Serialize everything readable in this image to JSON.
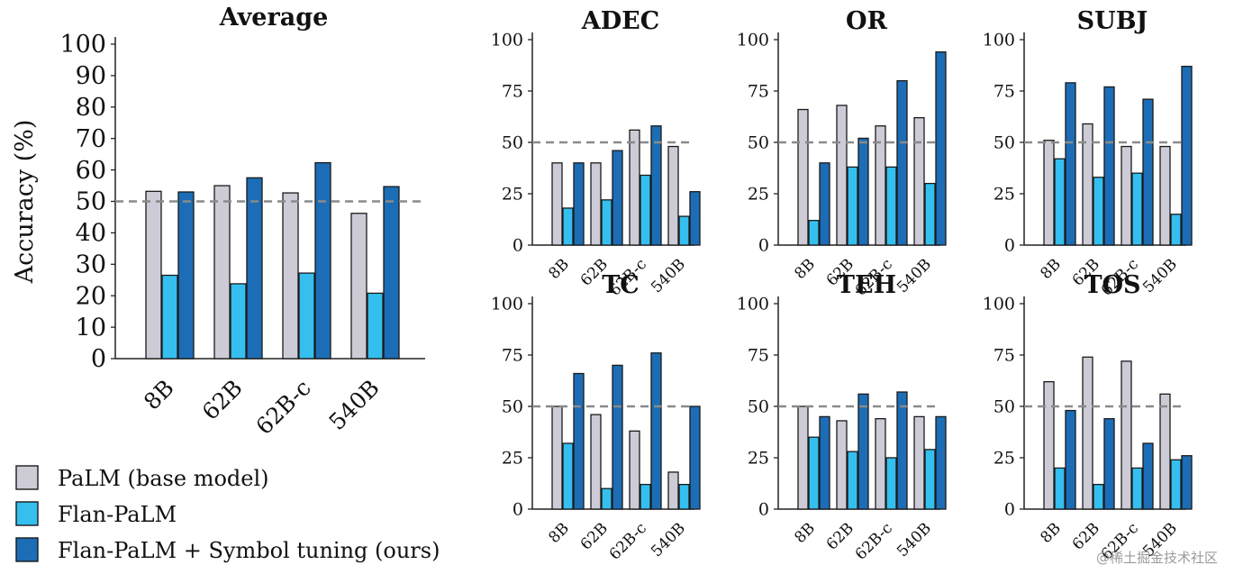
{
  "colors": {
    "palm": "#cdcbd6",
    "flan": "#35bfef",
    "symbol": "#1c6db5",
    "edge": "#1a1a1a",
    "reference": "#8a8a8a"
  },
  "legend": [
    {
      "key": "palm",
      "label": "PaLM (base model)"
    },
    {
      "key": "flan",
      "label": "Flan-PaLM"
    },
    {
      "key": "symbol",
      "label": "Flan-PaLM + Symbol tuning (ours)"
    }
  ],
  "watermark": "@稀土掘金技术社区",
  "chart_data": [
    {
      "type": "bar",
      "title": "Average",
      "ylabel": "Accuracy (%)",
      "ylim": [
        0,
        100
      ],
      "yticks": [
        0,
        10,
        20,
        30,
        40,
        50,
        60,
        70,
        80,
        90,
        100
      ],
      "reference_line": 50,
      "categories": [
        "8B",
        "62B",
        "62B-c",
        "540B"
      ],
      "series": [
        {
          "name": "PaLM (base model)",
          "values": [
            53.2,
            55.0,
            52.7,
            46.2
          ]
        },
        {
          "name": "Flan-PaLM",
          "values": [
            26.5,
            23.8,
            27.2,
            20.8
          ]
        },
        {
          "name": "Flan-PaLM + Symbol tuning (ours)",
          "values": [
            53.0,
            57.5,
            62.3,
            54.7
          ]
        }
      ]
    },
    {
      "type": "bar",
      "title": "ADEC",
      "ylim": [
        0,
        100
      ],
      "yticks": [
        0,
        25,
        50,
        75,
        100
      ],
      "reference_line": 50,
      "categories": [
        "8B",
        "62B",
        "62B-c",
        "540B"
      ],
      "series": [
        {
          "name": "PaLM (base model)",
          "values": [
            40,
            40,
            56,
            48
          ]
        },
        {
          "name": "Flan-PaLM",
          "values": [
            18,
            22,
            34,
            14
          ]
        },
        {
          "name": "Flan-PaLM + Symbol tuning (ours)",
          "values": [
            40,
            46,
            58,
            26
          ]
        }
      ]
    },
    {
      "type": "bar",
      "title": "OR",
      "ylim": [
        0,
        100
      ],
      "yticks": [
        0,
        25,
        50,
        75,
        100
      ],
      "reference_line": 50,
      "categories": [
        "8B",
        "62B",
        "62B-c",
        "540B"
      ],
      "series": [
        {
          "name": "PaLM (base model)",
          "values": [
            66,
            68,
            58,
            62
          ]
        },
        {
          "name": "Flan-PaLM",
          "values": [
            12,
            38,
            38,
            30
          ]
        },
        {
          "name": "Flan-PaLM + Symbol tuning (ours)",
          "values": [
            40,
            52,
            80,
            94
          ]
        }
      ]
    },
    {
      "type": "bar",
      "title": "SUBJ",
      "ylim": [
        0,
        100
      ],
      "yticks": [
        0,
        25,
        50,
        75,
        100
      ],
      "reference_line": 50,
      "categories": [
        "8B",
        "62B",
        "62B-c",
        "540B"
      ],
      "series": [
        {
          "name": "PaLM (base model)",
          "values": [
            51,
            59,
            48,
            48
          ]
        },
        {
          "name": "Flan-PaLM",
          "values": [
            42,
            33,
            35,
            15
          ]
        },
        {
          "name": "Flan-PaLM + Symbol tuning (ours)",
          "values": [
            79,
            77,
            71,
            87
          ]
        }
      ]
    },
    {
      "type": "bar",
      "title": "TC",
      "ylim": [
        0,
        100
      ],
      "yticks": [
        0,
        25,
        50,
        75,
        100
      ],
      "reference_line": 50,
      "categories": [
        "8B",
        "62B",
        "62B-c",
        "540B"
      ],
      "series": [
        {
          "name": "PaLM (base model)",
          "values": [
            50,
            46,
            38,
            18
          ]
        },
        {
          "name": "Flan-PaLM",
          "values": [
            32,
            10,
            12,
            12
          ]
        },
        {
          "name": "Flan-PaLM + Symbol tuning (ours)",
          "values": [
            66,
            70,
            76,
            50
          ]
        }
      ]
    },
    {
      "type": "bar",
      "title": "TEH",
      "ylim": [
        0,
        100
      ],
      "yticks": [
        0,
        25,
        50,
        75,
        100
      ],
      "reference_line": 50,
      "categories": [
        "8B",
        "62B",
        "62B-c",
        "540B"
      ],
      "series": [
        {
          "name": "PaLM (base model)",
          "values": [
            50,
            43,
            44,
            45
          ]
        },
        {
          "name": "Flan-PaLM",
          "values": [
            35,
            28,
            25,
            29
          ]
        },
        {
          "name": "Flan-PaLM + Symbol tuning (ours)",
          "values": [
            45,
            56,
            57,
            45
          ]
        }
      ]
    },
    {
      "type": "bar",
      "title": "TOS",
      "ylim": [
        0,
        100
      ],
      "yticks": [
        0,
        25,
        50,
        75,
        100
      ],
      "reference_line": 50,
      "categories": [
        "8B",
        "62B",
        "62B-c",
        "540B"
      ],
      "series": [
        {
          "name": "PaLM (base model)",
          "values": [
            62,
            74,
            72,
            56
          ]
        },
        {
          "name": "Flan-PaLM",
          "values": [
            20,
            12,
            20,
            24
          ]
        },
        {
          "name": "Flan-PaLM + Symbol tuning (ours)",
          "values": [
            48,
            44,
            32,
            26
          ]
        }
      ]
    }
  ]
}
